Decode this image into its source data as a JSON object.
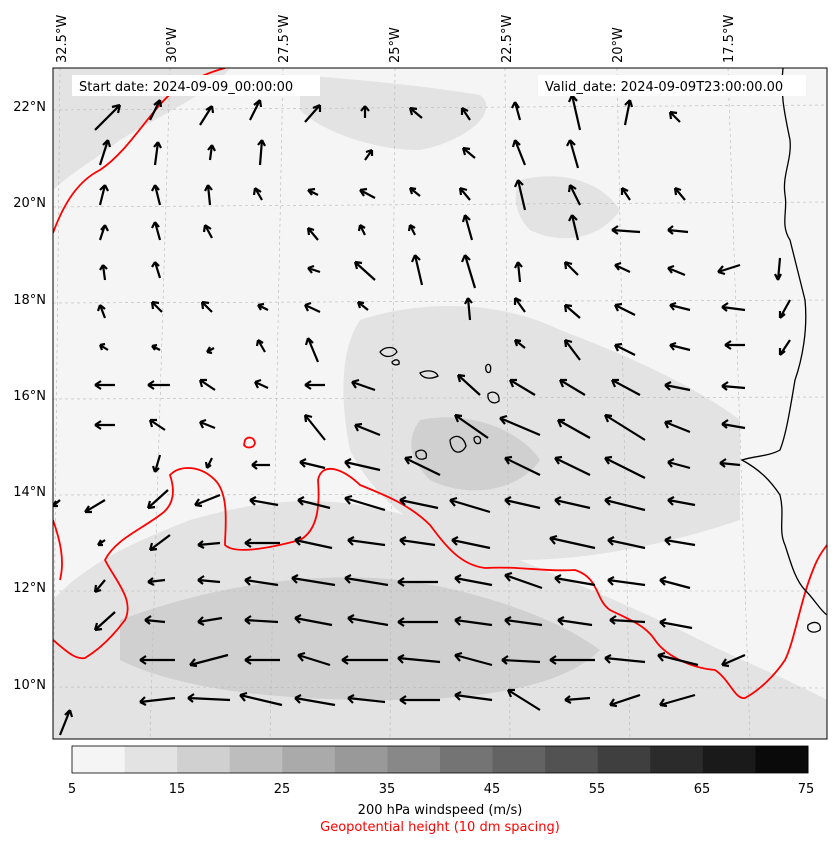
{
  "header": {
    "start_date": "Start date: 2024-09-09_00:00:00",
    "valid_date": "Valid_date: 2024-09-09T23:00:00.00"
  },
  "axes": {
    "lon_labels": [
      "32.5°W",
      "30°W",
      "27.5°W",
      "25°W",
      "22.5°W",
      "20°W",
      "17.5°W"
    ],
    "lat_labels": [
      "22°N",
      "20°N",
      "18°N",
      "16°N",
      "14°N",
      "12°N",
      "10°N"
    ]
  },
  "colorbar": {
    "tick_labels": [
      "5",
      "15",
      "25",
      "35",
      "45",
      "55",
      "65",
      "75"
    ],
    "title": "200 hPa windspeed (m/s)",
    "subtitle": "Geopotential height (10 dm spacing)",
    "subtitle_color": "#ff0000",
    "levels": [
      5,
      10,
      15,
      20,
      25,
      30,
      35,
      40,
      45,
      50,
      55,
      60,
      65,
      70,
      75
    ],
    "colors": [
      "#f5f5f5",
      "#e3e3e3",
      "#d0d0d0",
      "#bdbdbd",
      "#aaaaaa",
      "#999999",
      "#888888",
      "#747474",
      "#636363",
      "#525252",
      "#3f3f3f",
      "#2b2b2b",
      "#1a1a1a",
      "#0a0a0a"
    ]
  },
  "map": {
    "extent_lon": [
      -32.8,
      -15.5
    ],
    "extent_lat": [
      8.9,
      22.7
    ],
    "contour_color": "#ff0000",
    "coast_color": "#000000",
    "arrow_color": "#000000"
  }
}
